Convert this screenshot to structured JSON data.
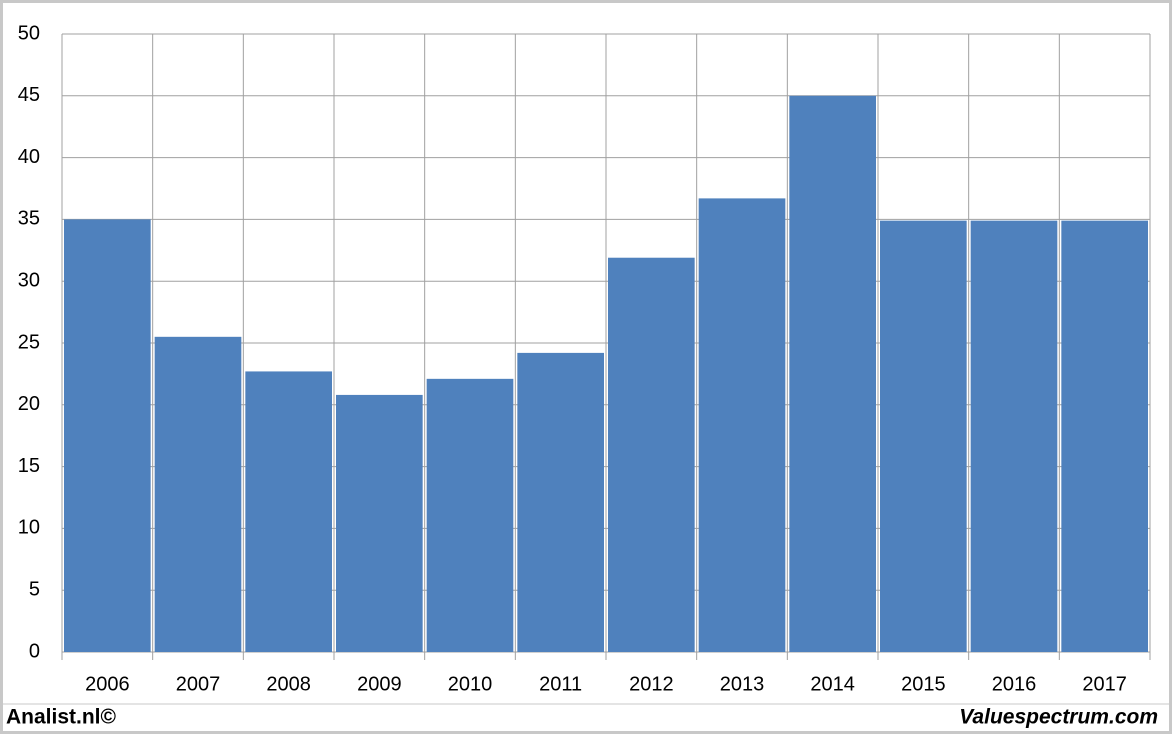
{
  "chart_data": {
    "type": "bar",
    "categories": [
      "2006",
      "2007",
      "2008",
      "2009",
      "2010",
      "2011",
      "2012",
      "2013",
      "2014",
      "2015",
      "2016",
      "2017"
    ],
    "values": [
      35,
      25.5,
      22.7,
      20.8,
      22.1,
      24.2,
      31.9,
      36.7,
      45,
      34.9,
      34.9,
      34.9
    ],
    "color": "#4f81bd",
    "ylim": [
      0,
      50
    ],
    "yticks": [
      0,
      5,
      10,
      15,
      20,
      25,
      30,
      35,
      40,
      45,
      50
    ],
    "grid": true,
    "annotations": [
      "Analist.nl©",
      "Valuespectrum.com"
    ]
  }
}
